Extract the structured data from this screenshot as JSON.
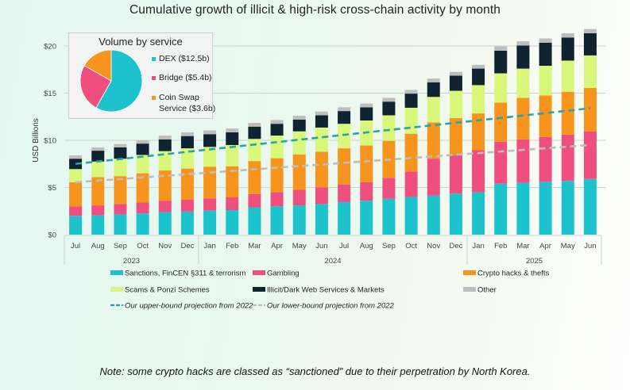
{
  "note": "Note: some crypto hacks are classed as “sanctioned” due to their perpetration by North Korea.",
  "chart_data": {
    "type": "bar",
    "stacked": true,
    "title": "Cumulative growth of illicit & high-risk cross-chain activity by month",
    "xlabel": "",
    "ylabel": "USD Billions",
    "ylim": [
      0,
      21.5
    ],
    "yticks": [
      0,
      5,
      10,
      15,
      20
    ],
    "ytick_labels": [
      "$0",
      "$5",
      "$10",
      "$15",
      "$20"
    ],
    "grid": true,
    "categories": [
      "Jul",
      "Aug",
      "Sep",
      "Oct",
      "Nov",
      "Dec",
      "Jan",
      "Feb",
      "Mar",
      "Apr",
      "May",
      "Jun",
      "Jul",
      "Aug",
      "Sep",
      "Oct",
      "Nov",
      "Dec",
      "Jan",
      "Feb",
      "Mar",
      "Apr",
      "May",
      "Jun"
    ],
    "year_groups": [
      {
        "label": "2023",
        "count": 6
      },
      {
        "label": "2024",
        "count": 12
      },
      {
        "label": "2025",
        "count": 6
      }
    ],
    "series": [
      {
        "name": "Sanctions, FinCEN §311 & terrorism",
        "color": "#1cc3cc",
        "values": [
          2.0,
          2.05,
          2.15,
          2.25,
          2.4,
          2.45,
          2.55,
          2.6,
          2.9,
          3.0,
          3.1,
          3.25,
          3.45,
          3.6,
          3.8,
          4.0,
          4.15,
          4.35,
          4.5,
          5.4,
          5.5,
          5.6,
          5.7,
          5.9
        ]
      },
      {
        "name": "Gambling",
        "color": "#ee4f7e",
        "values": [
          1.0,
          1.05,
          1.1,
          1.15,
          1.2,
          1.25,
          1.3,
          1.35,
          1.4,
          1.5,
          1.65,
          1.75,
          1.85,
          1.95,
          2.2,
          2.7,
          3.9,
          4.05,
          4.45,
          4.45,
          4.6,
          4.75,
          4.9,
          5.05
        ]
      },
      {
        "name": "Crypto hacks & thefts",
        "color": "#f7941d",
        "values": [
          2.55,
          3.0,
          2.95,
          3.1,
          3.2,
          3.3,
          3.35,
          3.3,
          3.5,
          3.6,
          3.75,
          3.8,
          3.85,
          3.9,
          3.95,
          4.0,
          3.85,
          3.95,
          3.9,
          4.15,
          4.4,
          4.4,
          4.55,
          4.6
        ]
      },
      {
        "name": "Scams & Ponzi Schemes",
        "color": "#d9f77a",
        "values": [
          1.4,
          1.65,
          1.85,
          1.95,
          2.05,
          2.15,
          2.1,
          2.25,
          2.35,
          2.4,
          2.45,
          2.55,
          2.6,
          2.65,
          2.7,
          2.75,
          2.7,
          2.9,
          3.0,
          3.1,
          3.1,
          3.15,
          3.3,
          3.45
        ]
      },
      {
        "name": "Illicit/Dark Web Services & Markets",
        "color": "#0f2330",
        "values": [
          1.1,
          1.15,
          1.2,
          1.2,
          1.25,
          1.3,
          1.35,
          1.35,
          1.3,
          1.25,
          1.25,
          1.3,
          1.35,
          1.4,
          1.45,
          1.5,
          1.55,
          1.6,
          1.75,
          2.4,
          2.45,
          2.45,
          2.45,
          2.35
        ]
      },
      {
        "name": "Other",
        "color": "#bebebe",
        "values": [
          0.35,
          0.35,
          0.35,
          0.35,
          0.4,
          0.4,
          0.4,
          0.4,
          0.4,
          0.4,
          0.4,
          0.4,
          0.4,
          0.4,
          0.4,
          0.4,
          0.4,
          0.4,
          0.4,
          0.45,
          0.45,
          0.45,
          0.45,
          0.45
        ]
      }
    ],
    "lines": [
      {
        "name": "Our upper-bound projection from 2022",
        "color": "#2aa5a5",
        "style": "dashed",
        "start": 7.5,
        "end": 13.4
      },
      {
        "name": "Our lower-bound projection from 2022",
        "color": "#bdbdbd",
        "style": "dashed",
        "start": 5.55,
        "end": 9.5
      }
    ],
    "legend": {
      "placement": "bottom",
      "items": [
        {
          "label": "Sanctions, FinCEN §311 & terrorism",
          "color": "#1cc3cc",
          "kind": "box"
        },
        {
          "label": "Gambling",
          "color": "#ee4f7e",
          "kind": "box"
        },
        {
          "label": "Crypto hacks & thefts",
          "color": "#f7941d",
          "kind": "box"
        },
        {
          "label": "Scams & Ponzi Schemes",
          "color": "#d9f77a",
          "kind": "box"
        },
        {
          "label": "Illicit/Dark Web Services & Markets",
          "color": "#0f2330",
          "kind": "box"
        },
        {
          "label": "Other",
          "color": "#bebebe",
          "kind": "box"
        },
        {
          "label": "Our upper-bound projection from 2022",
          "color": "#2aa5a5",
          "kind": "dash"
        },
        {
          "label": "Our lower-bound projection from 2022",
          "color": "#bdbdbd",
          "kind": "dash"
        }
      ]
    },
    "inset_pie": {
      "type": "pie",
      "title": "Volume by service",
      "placement": "top-left",
      "slices": [
        {
          "label": "DEX ($12.5b)",
          "name": "DEX",
          "value": 12.5,
          "color": "#1cc3cc"
        },
        {
          "label": "Bridge ($5.4b)",
          "name": "Bridge",
          "value": 5.4,
          "color": "#ee4f7e"
        },
        {
          "label": "Coin Swap Service ($3.6b)",
          "label_lines": [
            "Coin Swap",
            "Service ($3.6b)"
          ],
          "name": "Coin Swap Service",
          "value": 3.6,
          "color": "#f7941d"
        }
      ]
    }
  }
}
